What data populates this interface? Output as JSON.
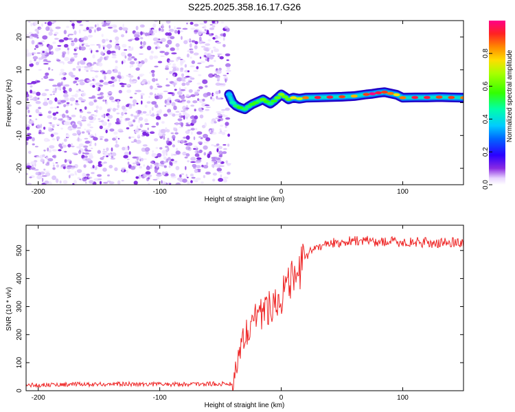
{
  "figure": {
    "title": "S225.2025.358.16.17.G26"
  },
  "chart_data": [
    {
      "type": "heatmap",
      "title": "S225.2025.358.16.17.G26",
      "xlabel": "Height of straight line (km)",
      "ylabel": "Frequency (Hz)",
      "xlim": [
        -210,
        150
      ],
      "ylim": [
        -25,
        25
      ],
      "xticks": [
        -200,
        -100,
        0,
        100
      ],
      "yticks": [
        -20,
        -10,
        0,
        10,
        20
      ],
      "noise_region_x": [
        -210,
        -43
      ],
      "signal_track": {
        "x": [
          -43,
          -40,
          -37,
          -34,
          -30,
          -27,
          -24,
          -21,
          -18,
          -15,
          -12,
          -9,
          -6,
          -3,
          0,
          3,
          6,
          10,
          15,
          20,
          30,
          40,
          50,
          60,
          70,
          75,
          80,
          85,
          90,
          95,
          100,
          110,
          120,
          130,
          140,
          150
        ],
        "freq_hz": [
          2.5,
          0.0,
          -1.0,
          -1.5,
          -2.0,
          -1.2,
          -0.5,
          0.0,
          0.5,
          1.0,
          0.3,
          -0.3,
          0.5,
          1.5,
          2.5,
          1.8,
          1.0,
          1.5,
          1.2,
          1.5,
          1.6,
          1.7,
          1.8,
          2.0,
          2.5,
          2.7,
          3.0,
          3.2,
          2.8,
          2.4,
          1.5,
          1.6,
          1.6,
          1.7,
          1.6,
          1.5
        ],
        "amplitude": [
          0.35,
          0.45,
          0.5,
          0.55,
          0.5,
          0.5,
          0.55,
          0.55,
          0.5,
          0.6,
          0.55,
          0.5,
          0.55,
          0.6,
          0.65,
          0.6,
          0.6,
          0.75,
          0.7,
          0.85,
          0.95,
          0.95,
          0.9,
          0.8,
          0.9,
          1.0,
          0.95,
          0.9,
          0.85,
          0.75,
          0.85,
          0.95,
          0.95,
          0.9,
          0.9,
          0.85
        ]
      },
      "colorbar": {
        "label": "Normalized spectral amplitude",
        "range": [
          0,
          1
        ],
        "ticks": [
          "0.0",
          "0.2",
          "0.4",
          "0.6",
          "0.8"
        ]
      }
    },
    {
      "type": "line",
      "xlabel": "Height of straight line (km)",
      "ylabel": "SNR (10 * v/v)",
      "xlim": [
        -210,
        150
      ],
      "ylim": [
        0,
        590
      ],
      "xticks": [
        -200,
        -100,
        0,
        100
      ],
      "yticks": [
        0,
        100,
        200,
        300,
        400,
        500
      ],
      "series": [
        {
          "name": "SNR",
          "color": "#ee2222",
          "x": [
            -210,
            -180,
            -150,
            -120,
            -90,
            -60,
            -40,
            -38,
            -35,
            -32,
            -29,
            -26,
            -23,
            -20,
            -15,
            -10,
            -5,
            -2,
            0,
            3,
            6,
            10,
            12,
            15,
            18,
            20,
            25,
            30,
            35,
            40,
            50,
            60,
            70,
            80,
            90,
            100,
            110,
            120,
            130,
            140,
            150
          ],
          "y": [
            20,
            22,
            23,
            24,
            23,
            24,
            25,
            60,
            140,
            180,
            210,
            230,
            260,
            270,
            280,
            300,
            320,
            330,
            340,
            360,
            370,
            400,
            410,
            430,
            450,
            470,
            500,
            515,
            520,
            525,
            530,
            535,
            535,
            530,
            532,
            528,
            530,
            528,
            525,
            530,
            528
          ]
        }
      ]
    }
  ]
}
